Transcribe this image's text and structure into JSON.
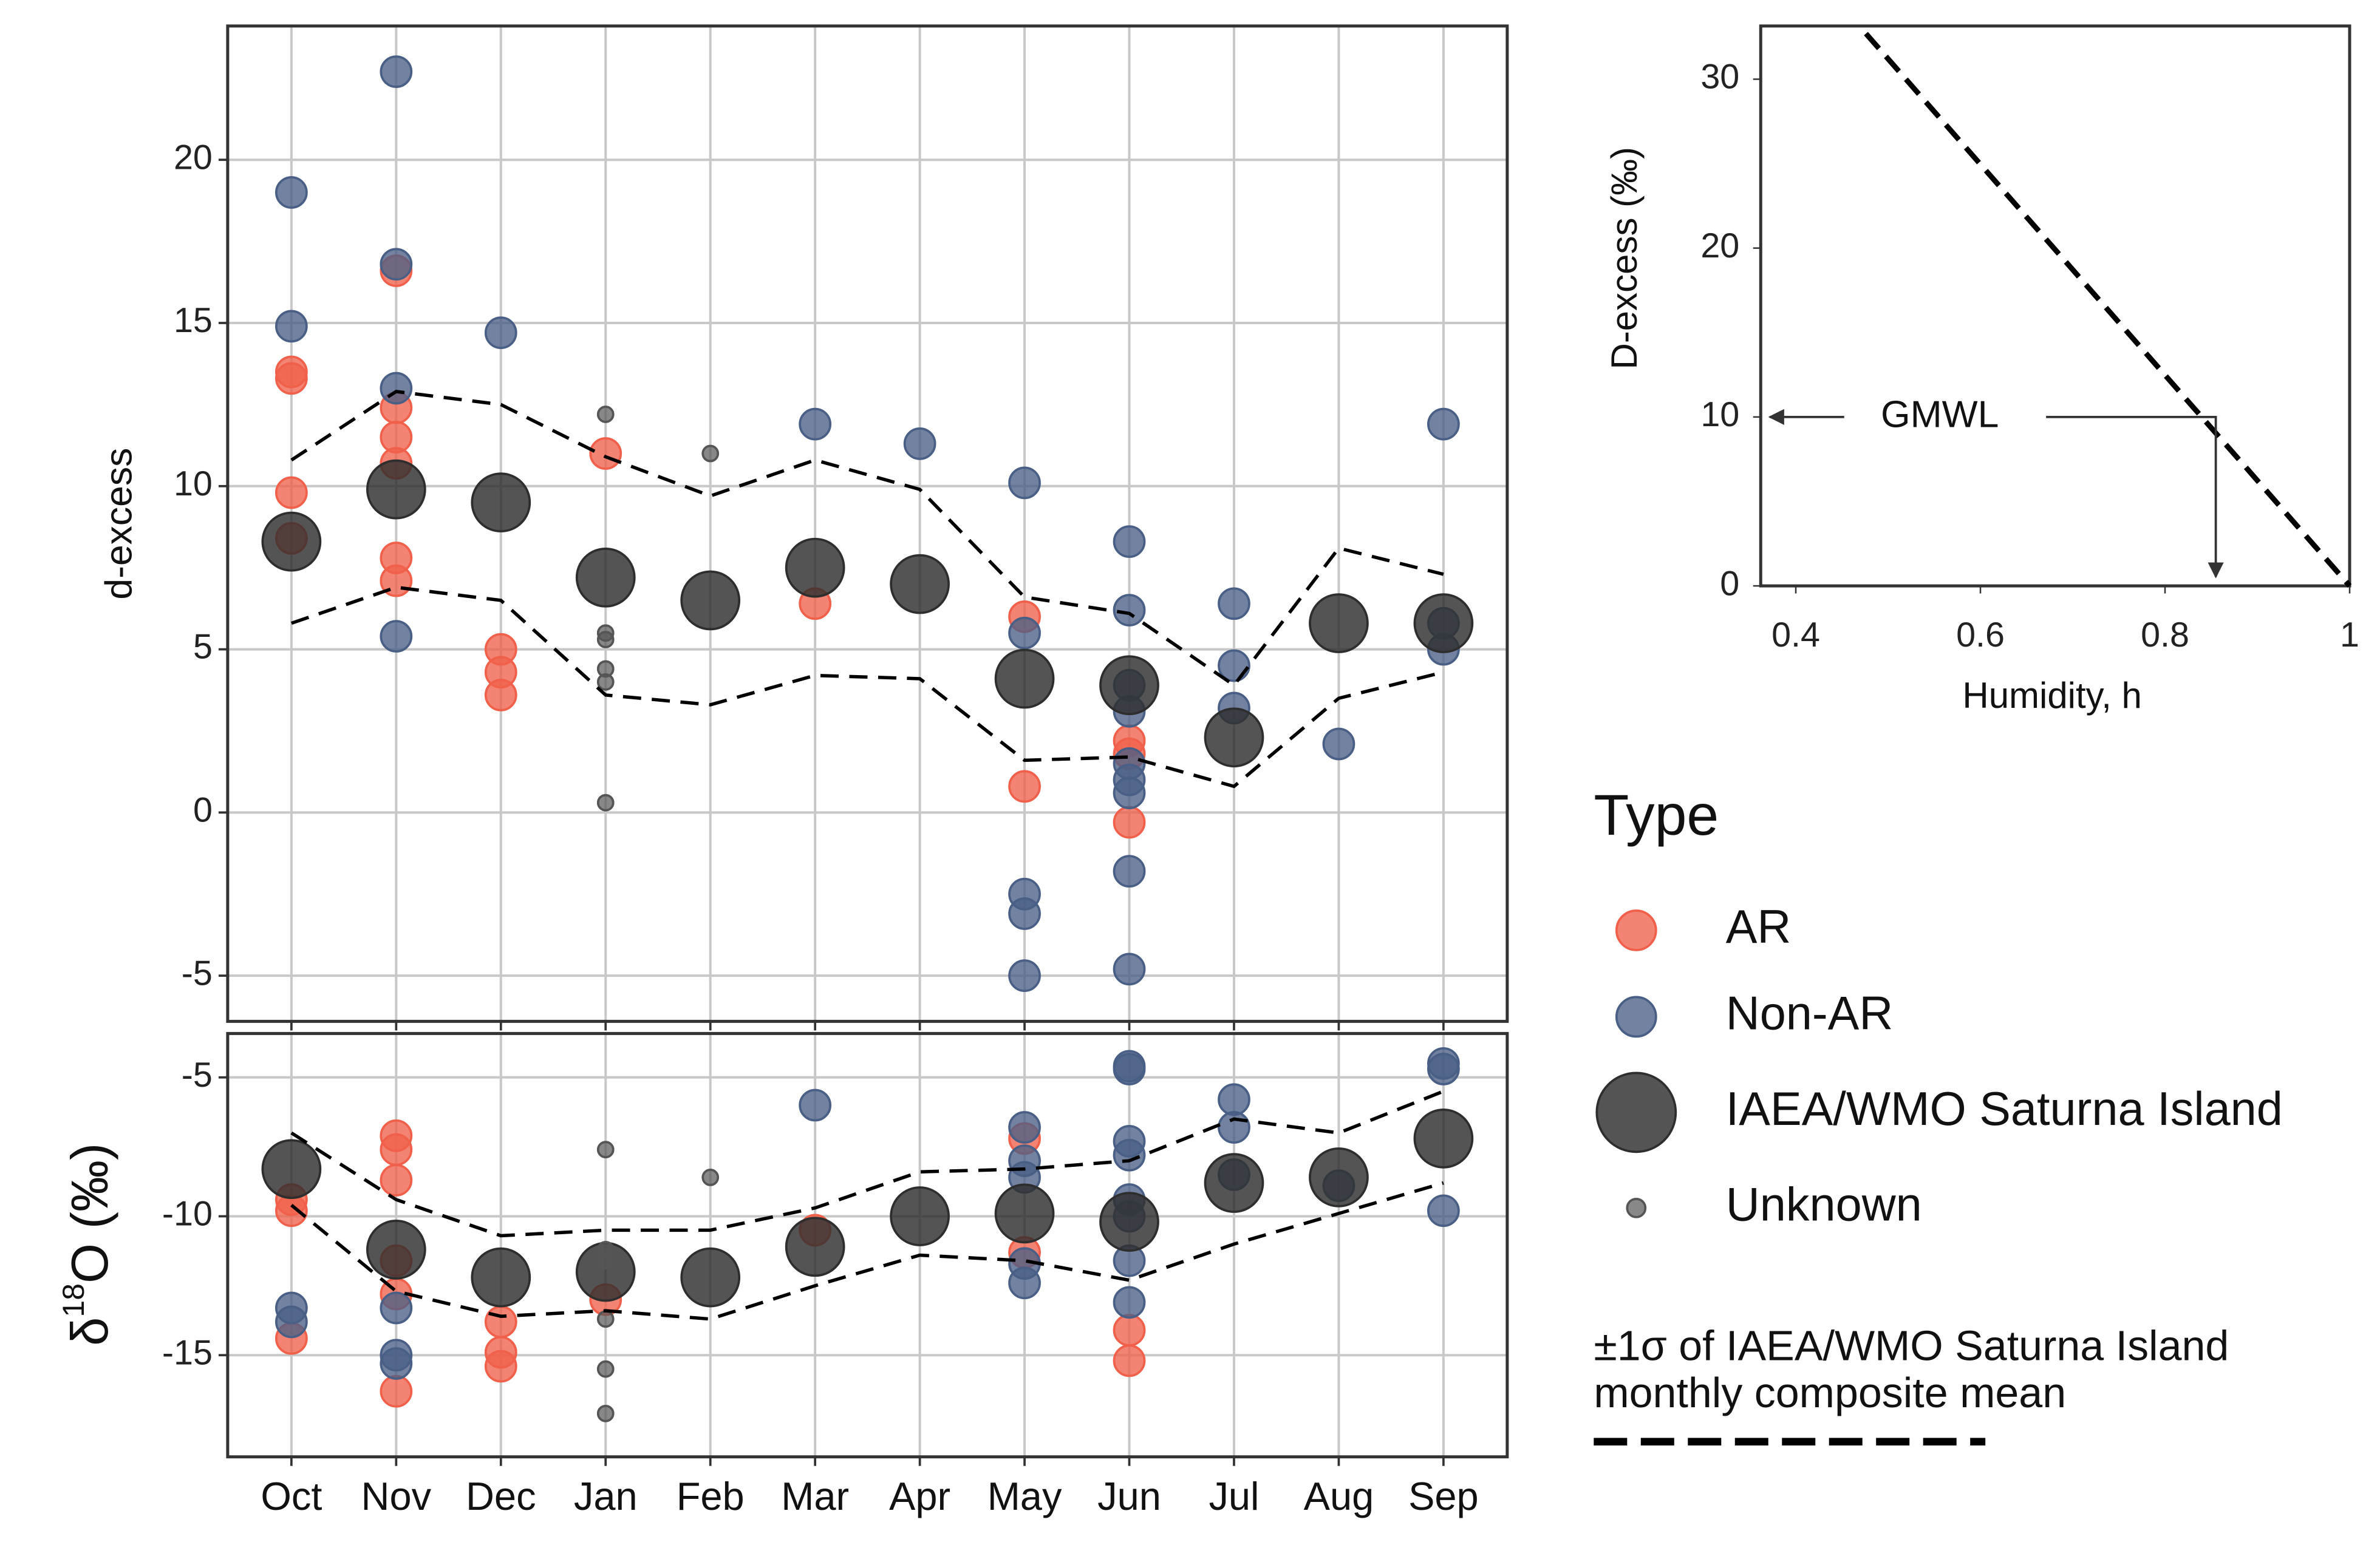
{
  "chart_data": [
    {
      "type": "scatter",
      "ylabel": "d-excess",
      "ylim": [
        -6.4,
        24.1
      ],
      "yticks": [
        -5,
        0,
        5,
        10,
        15,
        20
      ],
      "grid": true,
      "legend_title": "Type",
      "series": [
        {
          "name": "AR",
          "color": "#f0604a",
          "values": [
            [
              13.5,
              13.3,
              9.8,
              8.4
            ],
            [
              16.6,
              12.4,
              11.5,
              10.7,
              7.8,
              7.1
            ],
            [
              5.0,
              4.3,
              3.6
            ],
            [
              11.0
            ],
            [],
            [
              6.4
            ],
            [],
            [
              6.0,
              0.8
            ],
            [
              2.2,
              1.8,
              -0.3
            ],
            [],
            [],
            []
          ]
        },
        {
          "name": "Non-AR",
          "color": "#4a5f85",
          "values": [
            [
              19.0,
              14.9
            ],
            [
              22.7,
              16.8,
              13.0,
              5.4
            ],
            [
              14.7
            ],
            [],
            [],
            [
              11.9
            ],
            [
              11.3
            ],
            [
              10.1,
              5.5,
              -2.5,
              -3.1,
              -5.0
            ],
            [
              8.3,
              6.2,
              3.9,
              3.1,
              1.5,
              1.0,
              0.6,
              -1.8,
              -4.8
            ],
            [
              6.4,
              4.5,
              3.2
            ],
            [
              2.1
            ],
            [
              11.9,
              5.8,
              5.0
            ]
          ]
        },
        {
          "name": "IAEA/WMO Saturna Island",
          "color": "#2e2e2e",
          "values": [
            [
              8.3
            ],
            [
              9.9
            ],
            [
              9.5
            ],
            [
              7.2
            ],
            [
              6.5
            ],
            [
              7.5
            ],
            [
              7.0
            ],
            [
              4.1
            ],
            [
              3.9
            ],
            [
              2.3
            ],
            [
              5.8
            ],
            [
              5.8
            ]
          ]
        },
        {
          "name": "Unknown",
          "color": "#555555",
          "values": [
            [],
            [],
            [],
            [
              12.2,
              5.5,
              5.3,
              4.4,
              4.0,
              0.3
            ],
            [
              11.0
            ],
            [],
            [],
            [],
            [],
            [],
            [],
            []
          ]
        }
      ],
      "band": {
        "name": [
          "±1σ of IAEA/WMO Saturna Island",
          "monthly composite mean"
        ],
        "color": "#000000",
        "upper": [
          10.8,
          12.9,
          12.5,
          10.9,
          9.7,
          10.8,
          9.9,
          6.6,
          6.1,
          3.9,
          8.1,
          7.3
        ],
        "lower": [
          5.8,
          6.9,
          6.5,
          3.6,
          3.3,
          4.2,
          4.1,
          1.6,
          1.7,
          0.8,
          3.5,
          4.3
        ]
      }
    },
    {
      "type": "scatter",
      "ylabel": [
        "δ",
        "18",
        "O (‰)"
      ],
      "categories": [
        "Oct",
        "Nov",
        "Dec",
        "Jan",
        "Feb",
        "Mar",
        "Apr",
        "May",
        "Jun",
        "Jul",
        "Aug",
        "Sep"
      ],
      "ylim": [
        -18.66,
        -3.42
      ],
      "yticks": [
        -5,
        -10,
        -15
      ],
      "grid": true,
      "series": [
        {
          "color": "#f0604a",
          "values": [
            [
              -9.4,
              -9.8,
              -14.4
            ],
            [
              -7.1,
              -7.6,
              -8.7,
              -11.6,
              -12.8,
              -16.3
            ],
            [
              -13.8,
              -14.9,
              -15.4
            ],
            [
              -13.0
            ],
            [],
            [
              -10.5
            ],
            [],
            [
              -7.2,
              -11.3
            ],
            [
              -14.1,
              -15.2
            ],
            [],
            [],
            []
          ]
        },
        {
          "color": "#4a5f85",
          "values": [
            [
              -13.3,
              -13.8
            ],
            [
              -15.0,
              -15.3,
              -13.3
            ],
            [],
            [],
            [],
            [
              -6.0
            ],
            [],
            [
              -6.8,
              -8.0,
              -8.6,
              -11.7,
              -12.4
            ],
            [
              -4.6,
              -4.7,
              -7.3,
              -7.8,
              -9.4,
              -10.0,
              -11.6,
              -13.1
            ],
            [
              -5.8,
              -6.8,
              -8.5
            ],
            [
              -8.9
            ],
            [
              -4.5,
              -4.7,
              -9.8
            ]
          ]
        },
        {
          "color": "#2e2e2e",
          "values": [
            [
              -8.3
            ],
            [
              -11.2
            ],
            [
              -12.2
            ],
            [
              -12.0
            ],
            [
              -12.2
            ],
            [
              -11.1
            ],
            [
              -10.0
            ],
            [
              -9.9
            ],
            [
              -10.2
            ],
            [
              -8.8
            ],
            [
              -8.6
            ],
            [
              -7.2
            ]
          ]
        },
        {
          "color": "#555555",
          "values": [
            [],
            [],
            [],
            [
              -7.6,
              -11.2,
              -11.6,
              -13.7,
              -15.5,
              -17.1
            ],
            [
              -8.6
            ],
            [],
            [],
            [],
            [],
            [],
            [],
            []
          ]
        }
      ],
      "band": {
        "color": "#000000",
        "upper": [
          -7.0,
          -9.4,
          -10.7,
          -10.5,
          -10.5,
          -9.7,
          -8.4,
          -8.3,
          -8.0,
          -6.5,
          -7.0,
          -5.5
        ],
        "lower": [
          -9.6,
          -12.7,
          -13.6,
          -13.4,
          -13.7,
          -12.5,
          -11.4,
          -11.6,
          -12.3,
          -11.0,
          -9.9,
          -8.8
        ]
      }
    },
    {
      "type": "line",
      "xlabel": "Humidity, h",
      "ylabel": "D-excess (‰)",
      "xlim": [
        0.362,
        1.0
      ],
      "ylim": [
        0,
        33.15
      ],
      "xticks": [
        0.4,
        0.6,
        0.8,
        1
      ],
      "yticks": [
        0,
        10,
        20,
        30
      ],
      "x": [
        0.476,
        1
      ],
      "y": [
        32.7,
        0
      ],
      "color": "#000000",
      "gmwl": {
        "label": "GMWL",
        "d_excess": 10,
        "humidity": 0.855
      }
    }
  ]
}
